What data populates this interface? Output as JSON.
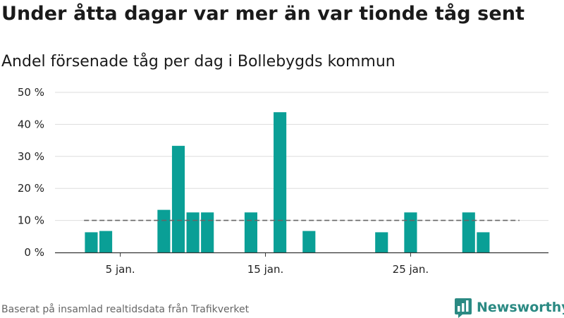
{
  "title": "Under åtta dagar var mer än var tionde tåg sent",
  "subtitle": "Andel försenade tåg per dag i Bollebygds kommun",
  "source": "Baserat på insamlad realtidsdata från Trafikverket",
  "brand": "Newsworthy",
  "colors": {
    "bar": "#0a9f96",
    "reference_line": "#666666",
    "grid": "#dddddd",
    "brand": "#2b8a83"
  },
  "chart_data": {
    "type": "bar",
    "xlabel": "",
    "ylabel": "",
    "x": [
      1,
      2,
      3,
      4,
      5,
      6,
      7,
      8,
      9,
      10,
      11,
      12,
      13,
      14,
      15,
      16,
      17,
      18,
      19,
      20,
      21,
      22,
      23,
      24,
      25,
      26,
      27,
      28,
      29,
      30,
      31
    ],
    "values": [
      0,
      0,
      6.3,
      6.7,
      0,
      0,
      0,
      13.3,
      33.3,
      12.5,
      12.5,
      0,
      0,
      12.5,
      0,
      43.8,
      0,
      6.7,
      0,
      0,
      0,
      0,
      6.3,
      0,
      12.5,
      0,
      0,
      0,
      12.5,
      6.3,
      0
    ],
    "xlim": [
      0.5,
      34.5
    ],
    "ylim": [
      0,
      50
    ],
    "yticks": [
      0,
      10,
      20,
      30,
      40,
      50
    ],
    "ytick_labels": [
      "0 %",
      "10 %",
      "20 %",
      "30 %",
      "40 %",
      "50 %"
    ],
    "xticks": [
      5,
      15,
      25
    ],
    "xtick_labels": [
      "5 jan.",
      "15 jan.",
      "25 jan."
    ],
    "reference_line": {
      "value": 10,
      "style": "dashed",
      "x_range": [
        2.5,
        32.5
      ]
    },
    "grid": true,
    "legend": false
  }
}
